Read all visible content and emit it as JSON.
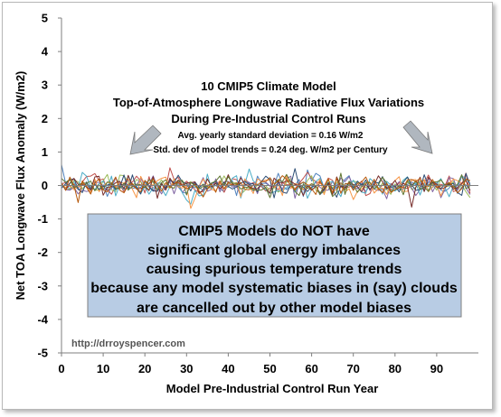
{
  "chart_data": {
    "type": "line",
    "xlabel": "Model Pre-Industrial Control Run Year",
    "ylabel": "Net TOA Longwave Flux Anomaly (W/m2)",
    "xlim": [
      0,
      100
    ],
    "ylim": [
      -5,
      5
    ],
    "x_ticks": [
      "0",
      "10",
      "20",
      "30",
      "40",
      "50",
      "60",
      "70",
      "80",
      "90"
    ],
    "y_ticks": [
      "5",
      "4",
      "3",
      "2",
      "1",
      "0",
      "-1",
      "-2",
      "-3",
      "-4",
      "-5"
    ],
    "grid": false,
    "title_lines": [
      "10 CMIP5 Climate Model",
      "Top-of-Atmosphere Longwave Radiative Flux Variations",
      "During Pre-Industrial Control Runs"
    ],
    "stats_lines": [
      "Avg. yearly standard deviation = 0.16 W/m2",
      "Std. dev of model trends = 0.24 deg. W/m2 per Century"
    ],
    "callout_lines": [
      "CMIP5 Models do NOT have",
      "significant global energy imbalances",
      "causing spurious temperature trends",
      "because any model systematic biases in (say) clouds",
      "are cancelled out by other model biases"
    ],
    "source": "http://drroyspencer.com",
    "series_count": 10,
    "series_colors": [
      "#4f81bd",
      "#c0504d",
      "#9bbb59",
      "#8064a2",
      "#4bacc6",
      "#f79646",
      "#2c4d75",
      "#772c2a",
      "#5f7530",
      "#b65708"
    ],
    "series_std": 0.16,
    "callout_box_color": "#b8cce4",
    "arrow_color": "#b0b7bf"
  }
}
